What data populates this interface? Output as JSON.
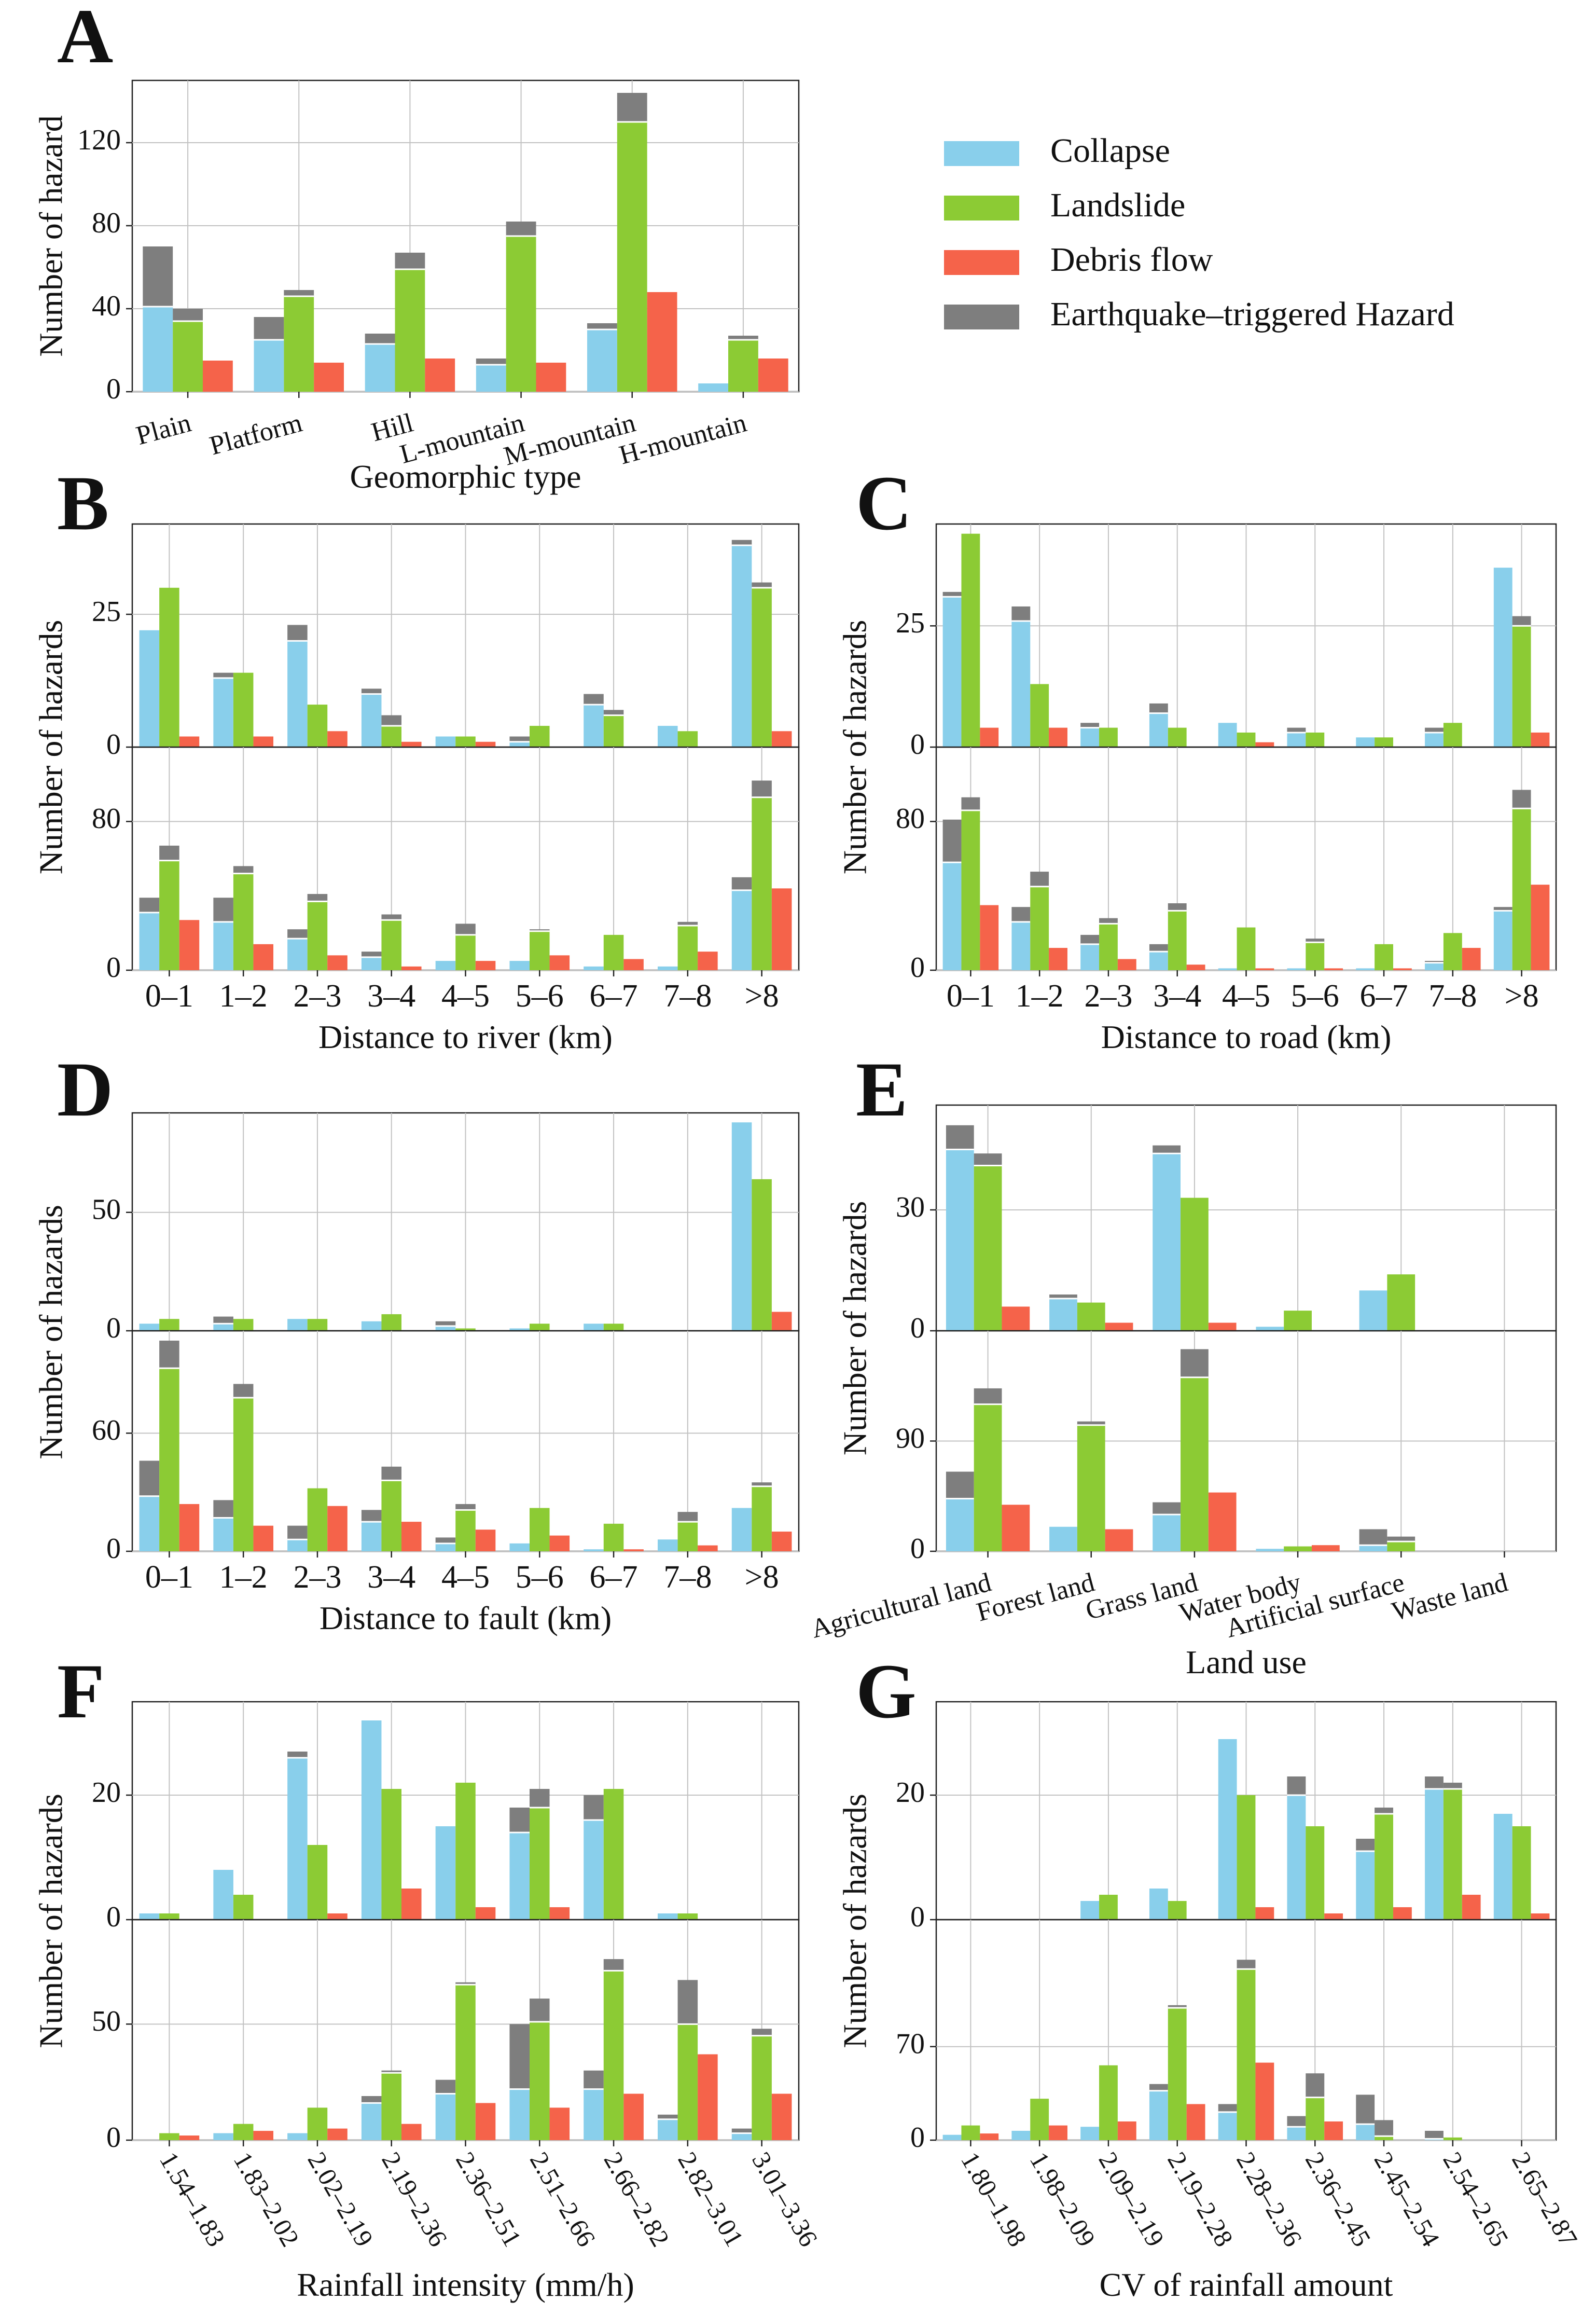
{
  "colors": {
    "collapse": "#89CFEB",
    "landslide": "#8CCB34",
    "debris": "#F5634A",
    "earthquake": "#7E7E7E",
    "grid": "#C2C2C2",
    "axis": "#222222"
  },
  "legend": {
    "entries": [
      {
        "label": "Collapse",
        "color": "#89CFEB"
      },
      {
        "label": "Landslide",
        "color": "#8CCB34"
      },
      {
        "label": "Debris flow",
        "color": "#F5634A"
      },
      {
        "label": "Earthquake–triggered Hazard",
        "color": "#7E7E7E"
      }
    ]
  },
  "chart_data": [
    {
      "id": "A",
      "type": "bar",
      "panel_label": "A",
      "stacked": "earthquake-triggered portion stacked on top of each bar",
      "xlabel": "Geomorphic type",
      "ylabel": "Number of hazard",
      "ylim": [
        0,
        150
      ],
      "yticks": [
        "0",
        "40",
        "80",
        "120"
      ],
      "categories": [
        "Plain",
        "Platform",
        "Hill",
        "L-mountain",
        "M-mountain",
        "H-mountain"
      ],
      "collapse": [
        41,
        25,
        23,
        13,
        30,
        4
      ],
      "collapse_eq": [
        29,
        11,
        5,
        3,
        3,
        0
      ],
      "landslide": [
        34,
        46,
        59,
        75,
        130,
        25
      ],
      "landslide_eq": [
        6,
        3,
        8,
        7,
        14,
        2
      ],
      "debris": [
        15,
        14,
        16,
        14,
        48,
        16
      ]
    },
    {
      "id": "B",
      "type": "bar",
      "panel_label": "B",
      "xlabel": "Distance to river (km)",
      "ylabel": "Number of hazards",
      "categories": [
        "0–1",
        "1–2",
        "2–3",
        "3–4",
        "4–5",
        "5–6",
        "6–7",
        "7–8",
        ">8"
      ],
      "top": {
        "ylim": [
          0,
          42
        ],
        "yticks": [
          "0",
          "25"
        ],
        "collapse": [
          22,
          13,
          20,
          10,
          2,
          1,
          8,
          4,
          38
        ],
        "collapse_eq": [
          0,
          1,
          3,
          1,
          0,
          1,
          2,
          0,
          1
        ],
        "landslide": [
          30,
          14,
          8,
          4,
          2,
          4,
          6,
          3,
          30
        ],
        "landslide_eq": [
          0,
          0,
          0,
          2,
          0,
          0,
          1,
          0,
          1
        ],
        "debris": [
          2,
          2,
          3,
          1,
          1,
          0,
          0,
          0,
          3
        ]
      },
      "bottom": {
        "ylim": [
          0,
          120
        ],
        "yticks": [
          "0",
          "80"
        ],
        "collapse": [
          31,
          26,
          17,
          7,
          5,
          5,
          2,
          2,
          43
        ],
        "collapse_eq": [
          8,
          13,
          5,
          3,
          0,
          0,
          0,
          0,
          7
        ],
        "landslide": [
          59,
          52,
          37,
          27,
          19,
          21,
          19,
          24,
          93
        ],
        "landslide_eq": [
          8,
          4,
          4,
          3,
          6,
          1,
          0,
          2,
          9
        ],
        "debris": [
          27,
          14,
          8,
          2,
          5,
          8,
          6,
          10,
          44
        ]
      }
    },
    {
      "id": "C",
      "type": "bar",
      "panel_label": "C",
      "xlabel": "Distance to road (km)",
      "ylabel": "Number of hazards",
      "categories": [
        "0–1",
        "1–2",
        "2–3",
        "3–4",
        "4–5",
        "5–6",
        "6–7",
        "7–8",
        ">8"
      ],
      "top": {
        "ylim": [
          0,
          46
        ],
        "yticks": [
          "0",
          "25"
        ],
        "collapse": [
          31,
          26,
          4,
          7,
          5,
          3,
          2,
          3,
          37
        ],
        "collapse_eq": [
          1,
          3,
          1,
          2,
          0,
          1,
          0,
          1,
          0
        ],
        "landslide": [
          44,
          13,
          4,
          4,
          3,
          3,
          2,
          5,
          25
        ],
        "landslide_eq": [
          0,
          0,
          0,
          0,
          0,
          0,
          0,
          0,
          2
        ],
        "debris": [
          4,
          4,
          0,
          0,
          1,
          0,
          0,
          0,
          3
        ]
      },
      "bottom": {
        "ylim": [
          0,
          120
        ],
        "yticks": [
          "0",
          "80"
        ],
        "collapse": [
          58,
          26,
          14,
          10,
          1,
          1,
          1,
          4,
          32
        ],
        "collapse_eq": [
          23,
          8,
          5,
          4,
          0,
          0,
          0,
          1,
          2
        ],
        "landslide": [
          86,
          45,
          25,
          32,
          23,
          15,
          14,
          20,
          87
        ],
        "landslide_eq": [
          7,
          8,
          3,
          4,
          0,
          2,
          0,
          0,
          10
        ],
        "debris": [
          35,
          12,
          6,
          3,
          1,
          1,
          1,
          12,
          46
        ]
      }
    },
    {
      "id": "D",
      "type": "bar",
      "panel_label": "D",
      "xlabel": "Distance to fault (km)",
      "ylabel": "Number of hazards",
      "categories": [
        "0–1",
        "1–2",
        "2–3",
        "3–4",
        "4–5",
        "5–6",
        "6–7",
        "7–8",
        ">8"
      ],
      "top": {
        "ylim": [
          0,
          92
        ],
        "yticks": [
          "0",
          "50"
        ],
        "collapse": [
          3,
          3,
          5,
          4,
          2,
          1,
          3,
          0,
          88
        ],
        "collapse_eq": [
          0,
          3,
          0,
          0,
          2,
          0,
          0,
          0,
          0
        ],
        "landslide": [
          5,
          5,
          5,
          7,
          1,
          3,
          3,
          0,
          64
        ],
        "landslide_eq": [
          0,
          0,
          0,
          0,
          0,
          0,
          0,
          0,
          0
        ],
        "debris": [
          0,
          0,
          0,
          0,
          0,
          0,
          0,
          0,
          8
        ]
      },
      "bottom": {
        "ylim": [
          0,
          112
        ],
        "yticks": [
          "0",
          "60"
        ],
        "collapse": [
          28,
          17,
          6,
          15,
          4,
          4,
          1,
          6,
          22
        ],
        "collapse_eq": [
          18,
          9,
          7,
          6,
          3,
          0,
          0,
          0,
          0
        ],
        "landslide": [
          93,
          78,
          32,
          36,
          21,
          22,
          14,
          15,
          33
        ],
        "landslide_eq": [
          14,
          7,
          0,
          7,
          3,
          0,
          0,
          5,
          2
        ],
        "debris": [
          24,
          13,
          23,
          15,
          11,
          8,
          1,
          3,
          10
        ]
      }
    },
    {
      "id": "E",
      "type": "bar",
      "panel_label": "E",
      "xlabel": "Land use",
      "ylabel": "Number of hazards",
      "categories": [
        "Agricultural land",
        "Forest land",
        "Grass land",
        "Water body",
        "Artificial surface",
        "Waste land"
      ],
      "top": {
        "ylim": [
          0,
          56
        ],
        "yticks": [
          "0",
          "30"
        ],
        "collapse": [
          45,
          8,
          44,
          1,
          10,
          0
        ],
        "collapse_eq": [
          6,
          1,
          2,
          0,
          0,
          0
        ],
        "landslide": [
          41,
          7,
          33,
          5,
          14,
          0
        ],
        "landslide_eq": [
          3,
          0,
          0,
          0,
          0,
          0
        ],
        "debris": [
          6,
          2,
          2,
          0,
          0,
          0
        ]
      },
      "bottom": {
        "ylim": [
          0,
          180
        ],
        "yticks": [
          "0",
          "90"
        ],
        "collapse": [
          43,
          20,
          30,
          2,
          5,
          0
        ],
        "collapse_eq": [
          22,
          0,
          10,
          0,
          13,
          0
        ],
        "landslide": [
          120,
          103,
          142,
          4,
          8,
          0
        ],
        "landslide_eq": [
          13,
          3,
          23,
          0,
          4,
          0
        ],
        "debris": [
          38,
          18,
          48,
          5,
          0,
          0
        ]
      }
    },
    {
      "id": "F",
      "type": "bar",
      "panel_label": "F",
      "xlabel": "Rainfall intensity (mm/h)",
      "ylabel": "Number of hazards",
      "categories": [
        "1.54–1.83",
        "1.83–2.02",
        "2.02–2.19",
        "2.19–2.36",
        "2.36–2.51",
        "2.51–2.66",
        "2.66–2.82",
        "2.82–3.01",
        "3.01–3.36"
      ],
      "top": {
        "ylim": [
          0,
          35
        ],
        "yticks": [
          "0",
          "20"
        ],
        "collapse": [
          1,
          8,
          26,
          32,
          15,
          14,
          16,
          1,
          0
        ],
        "collapse_eq": [
          0,
          0,
          1,
          0,
          0,
          4,
          4,
          0,
          0
        ],
        "landslide": [
          1,
          4,
          12,
          21,
          22,
          18,
          21,
          1,
          0
        ],
        "landslide_eq": [
          0,
          0,
          0,
          0,
          0,
          3,
          0,
          0,
          0
        ],
        "debris": [
          0,
          0,
          1,
          5,
          2,
          2,
          0,
          0,
          0
        ]
      },
      "bottom": {
        "ylim": [
          0,
          95
        ],
        "yticks": [
          "0",
          "50"
        ],
        "collapse": [
          0,
          3,
          3,
          16,
          20,
          22,
          22,
          9,
          3
        ],
        "collapse_eq": [
          0,
          0,
          0,
          3,
          6,
          28,
          8,
          2,
          2
        ],
        "landslide": [
          3,
          7,
          14,
          29,
          67,
          51,
          73,
          50,
          45
        ],
        "landslide_eq": [
          0,
          0,
          0,
          1,
          1,
          10,
          5,
          19,
          3
        ],
        "debris": [
          2,
          4,
          5,
          7,
          16,
          14,
          20,
          37,
          20
        ]
      }
    },
    {
      "id": "G",
      "type": "bar",
      "panel_label": "G",
      "xlabel": "CV of rainfall amount",
      "ylabel": "Number of hazards",
      "categories": [
        "1.80–1.98",
        "1.98–2.09",
        "2.09–2.19",
        "2.19–2.28",
        "2.28–2.36",
        "2.36–2.45",
        "2.45–2.54",
        "2.54–2.65",
        "2.65–2.87"
      ],
      "top": {
        "ylim": [
          0,
          35
        ],
        "yticks": [
          "0",
          "20"
        ],
        "collapse": [
          0,
          0,
          3,
          5,
          29,
          20,
          11,
          21,
          17
        ],
        "collapse_eq": [
          0,
          0,
          0,
          0,
          0,
          3,
          2,
          2,
          0
        ],
        "landslide": [
          0,
          0,
          4,
          3,
          20,
          15,
          17,
          21,
          15
        ],
        "landslide_eq": [
          0,
          0,
          0,
          0,
          0,
          0,
          1,
          1,
          0
        ],
        "debris": [
          0,
          0,
          0,
          0,
          2,
          1,
          2,
          4,
          1
        ]
      },
      "bottom": {
        "ylim": [
          0,
          165
        ],
        "yticks": [
          "0",
          "70"
        ],
        "collapse": [
          4,
          7,
          10,
          37,
          21,
          10,
          12,
          1,
          0
        ],
        "collapse_eq": [
          0,
          0,
          0,
          5,
          6,
          8,
          22,
          6,
          0
        ],
        "landslide": [
          11,
          31,
          56,
          99,
          128,
          32,
          3,
          2,
          0
        ],
        "landslide_eq": [
          0,
          0,
          0,
          2,
          7,
          18,
          12,
          0,
          0
        ],
        "debris": [
          5,
          11,
          14,
          27,
          58,
          14,
          0,
          0,
          0
        ]
      }
    }
  ]
}
